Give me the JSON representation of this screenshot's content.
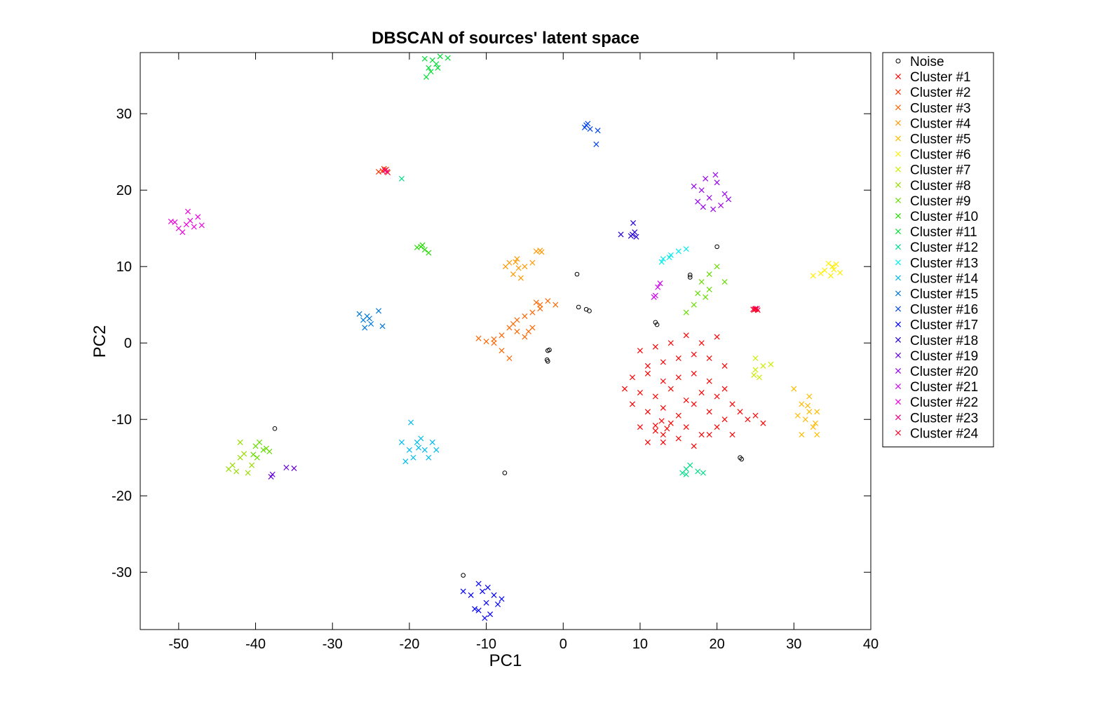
{
  "chart_data": {
    "type": "scatter",
    "title": "DBSCAN of sources' latent space",
    "xlabel": "PC1",
    "ylabel": "PC2",
    "xlim": [
      -55,
      40
    ],
    "ylim": [
      -37.5,
      38
    ],
    "xticks": [
      -50,
      -40,
      -30,
      -20,
      -10,
      0,
      10,
      20,
      30,
      40
    ],
    "yticks": [
      -30,
      -20,
      -10,
      0,
      10,
      20,
      30
    ],
    "xtick_labels": [
      "-50",
      "-40",
      "-30",
      "-20",
      "-10",
      "0",
      "10",
      "20",
      "30",
      "40"
    ],
    "ytick_labels": [
      "-30",
      "-20",
      "-10",
      "0",
      "10",
      "20",
      "30"
    ],
    "grid": false,
    "legend_position": "outside-right-top",
    "series": [
      {
        "name": "Noise",
        "marker": "circle",
        "color": "#000000",
        "points": [
          [
            20,
            12.6
          ],
          [
            16.5,
            8.9
          ],
          [
            16.5,
            8.6
          ],
          [
            1.8,
            9
          ],
          [
            12,
            2.7
          ],
          [
            12.2,
            2.4
          ],
          [
            2,
            4.7
          ],
          [
            3,
            4.4
          ],
          [
            3.4,
            4.2
          ],
          [
            -1.8,
            -0.9
          ],
          [
            -2,
            -1
          ],
          [
            -2.1,
            -2.2
          ],
          [
            -2,
            -2.4
          ],
          [
            23,
            -15
          ],
          [
            23.2,
            -15.2
          ],
          [
            -37.5,
            -11.2
          ],
          [
            -7.6,
            -17
          ],
          [
            -13,
            -30.4
          ]
        ]
      },
      {
        "name": "Cluster #1",
        "marker": "x",
        "color": "#ff0000",
        "points": [
          [
            10,
            -1
          ],
          [
            12,
            -0.5
          ],
          [
            14,
            0
          ],
          [
            16,
            1
          ],
          [
            18,
            0
          ],
          [
            20,
            0.8
          ],
          [
            11,
            -3
          ],
          [
            13,
            -2.5
          ],
          [
            15,
            -2
          ],
          [
            17,
            -1.5
          ],
          [
            19,
            -2
          ],
          [
            21,
            -3
          ],
          [
            9,
            -4.5
          ],
          [
            11,
            -4
          ],
          [
            13,
            -5
          ],
          [
            15,
            -4.5
          ],
          [
            17,
            -4
          ],
          [
            19,
            -5
          ],
          [
            21,
            -6
          ],
          [
            8,
            -6
          ],
          [
            10,
            -6.5
          ],
          [
            12,
            -7
          ],
          [
            14,
            -6
          ],
          [
            16,
            -7.5
          ],
          [
            18,
            -6.5
          ],
          [
            20,
            -7
          ],
          [
            22,
            -8
          ],
          [
            9,
            -8
          ],
          [
            11,
            -9
          ],
          [
            13,
            -8.5
          ],
          [
            15,
            -9.5
          ],
          [
            17,
            -8
          ],
          [
            19,
            -9
          ],
          [
            21,
            -10
          ],
          [
            23,
            -9
          ],
          [
            10,
            -11
          ],
          [
            12,
            -11.5
          ],
          [
            13,
            -12
          ],
          [
            14,
            -10.5
          ],
          [
            16,
            -11
          ],
          [
            18,
            -12
          ],
          [
            20,
            -11
          ],
          [
            22,
            -12
          ],
          [
            11,
            -13
          ],
          [
            13,
            -13
          ],
          [
            15,
            -12.5
          ],
          [
            17,
            -13.5
          ],
          [
            19,
            -12
          ],
          [
            24,
            -10
          ],
          [
            25,
            -9.5
          ],
          [
            26,
            -10.5
          ],
          [
            12,
            -10.8
          ],
          [
            13.5,
            -11.2
          ],
          [
            12.8,
            -10.2
          ]
        ]
      },
      {
        "name": "Cluster #2",
        "marker": "x",
        "color": "#ff3300",
        "points": [
          [
            -23.5,
            22.5
          ],
          [
            -23,
            22.7
          ],
          [
            -24,
            22.4
          ],
          [
            -22.8,
            22.3
          ],
          [
            -23.3,
            22.8
          ],
          [
            25,
            4.4
          ],
          [
            24.8,
            4.3
          ]
        ]
      },
      {
        "name": "Cluster #3",
        "marker": "x",
        "color": "#ff6600",
        "points": [
          [
            -11,
            0.6
          ],
          [
            -10,
            0.2
          ],
          [
            -9,
            0.5
          ],
          [
            -8,
            1
          ],
          [
            -7,
            2
          ],
          [
            -6,
            3
          ],
          [
            -5,
            3.5
          ],
          [
            -4,
            4
          ],
          [
            -3,
            5
          ],
          [
            -2,
            5.5
          ],
          [
            -6,
            1.5
          ],
          [
            -5,
            0.8
          ],
          [
            -4,
            2
          ],
          [
            -8,
            -1
          ],
          [
            -9,
            0
          ],
          [
            -7,
            -2
          ],
          [
            -3,
            4.5
          ],
          [
            -1,
            5
          ],
          [
            -3.5,
            5.3
          ],
          [
            -6.5,
            2.5
          ],
          [
            -4.5,
            1.5
          ]
        ]
      },
      {
        "name": "Cluster #4",
        "marker": "x",
        "color": "#ff9900",
        "points": [
          [
            -7,
            10.5
          ],
          [
            -6,
            11
          ],
          [
            -5,
            10
          ],
          [
            -6.5,
            9
          ],
          [
            -5.5,
            8.5
          ],
          [
            -4,
            10.5
          ],
          [
            -3.5,
            12
          ],
          [
            -3,
            12.1
          ],
          [
            -2.8,
            11.9
          ],
          [
            -7.5,
            10
          ],
          [
            -5.8,
            9.8
          ],
          [
            -6.2,
            10.6
          ]
        ]
      },
      {
        "name": "Cluster #5",
        "marker": "x",
        "color": "#ffbb00",
        "points": [
          [
            31,
            -8
          ],
          [
            32,
            -7
          ],
          [
            33,
            -9
          ],
          [
            31.5,
            -10
          ],
          [
            32.5,
            -11
          ],
          [
            30,
            -6
          ],
          [
            31,
            -12
          ],
          [
            33,
            -12
          ],
          [
            32,
            -9
          ],
          [
            30.5,
            -9.5
          ],
          [
            31.8,
            -8.2
          ],
          [
            32.8,
            -10.5
          ]
        ]
      },
      {
        "name": "Cluster #6",
        "marker": "x",
        "color": "#ffee00",
        "points": [
          [
            34,
            9.5
          ],
          [
            35,
            10
          ],
          [
            36,
            9.2
          ],
          [
            34.8,
            8.8
          ],
          [
            35.5,
            10.3
          ],
          [
            33.5,
            9.1
          ],
          [
            35.2,
            9.6
          ],
          [
            32.5,
            8.8
          ],
          [
            34.5,
            10.4
          ]
        ]
      },
      {
        "name": "Cluster #7",
        "marker": "x",
        "color": "#ccee00",
        "points": [
          [
            25,
            -3.5
          ],
          [
            26,
            -3
          ],
          [
            27,
            -2.8
          ],
          [
            25.5,
            -4.5
          ],
          [
            25,
            -2
          ],
          [
            24.8,
            -4.2
          ]
        ]
      },
      {
        "name": "Cluster #8",
        "marker": "x",
        "color": "#99dd00",
        "points": [
          [
            -43,
            -16
          ],
          [
            -42,
            -15
          ],
          [
            -41,
            -17
          ],
          [
            -42.5,
            -16.8
          ],
          [
            -41.5,
            -14.5
          ],
          [
            -40.5,
            -16
          ],
          [
            -42,
            -13
          ],
          [
            -43.5,
            -16.5
          ]
        ]
      },
      {
        "name": "Cluster #9",
        "marker": "x",
        "color": "#66dd00",
        "points": [
          [
            -40,
            -13.5
          ],
          [
            -39,
            -14
          ],
          [
            -39.5,
            -13
          ],
          [
            -40.3,
            -14.6
          ],
          [
            -38.6,
            -13.8
          ],
          [
            -39.8,
            -15
          ],
          [
            -38.2,
            -14.2
          ],
          [
            18,
            8
          ],
          [
            19,
            9
          ],
          [
            20,
            10
          ],
          [
            18.5,
            6
          ],
          [
            17,
            5
          ],
          [
            16,
            4
          ],
          [
            19,
            7
          ],
          [
            21,
            8
          ],
          [
            17.5,
            6.5
          ]
        ]
      },
      {
        "name": "Cluster #10",
        "marker": "x",
        "color": "#22dd00",
        "points": [
          [
            -18.5,
            12.6
          ],
          [
            -18,
            12.2
          ],
          [
            -17.5,
            11.8
          ],
          [
            -19,
            12.5
          ],
          [
            -18.3,
            12.8
          ]
        ]
      },
      {
        "name": "Cluster #11",
        "marker": "x",
        "color": "#00dd33",
        "points": [
          [
            -17,
            37
          ],
          [
            -16.5,
            36.5
          ],
          [
            -17.5,
            36
          ],
          [
            -16,
            37.5
          ],
          [
            -18,
            37.2
          ],
          [
            -17.2,
            35.5
          ],
          [
            -16.3,
            36
          ],
          [
            -17.8,
            34.8
          ],
          [
            -15,
            37.3
          ]
        ]
      },
      {
        "name": "Cluster #12",
        "marker": "x",
        "color": "#00dd88",
        "points": [
          [
            16,
            -16.5
          ],
          [
            16.5,
            -16
          ],
          [
            15.5,
            -17
          ],
          [
            17.5,
            -16.8
          ],
          [
            18.2,
            -17
          ],
          [
            16,
            -17.2
          ],
          [
            -21,
            21.5
          ]
        ]
      },
      {
        "name": "Cluster #13",
        "marker": "x",
        "color": "#00eeee",
        "points": [
          [
            13,
            11
          ],
          [
            14,
            11.5
          ],
          [
            15,
            12
          ],
          [
            16,
            12.3
          ],
          [
            12.8,
            10.6
          ],
          [
            13.8,
            11.2
          ]
        ]
      },
      {
        "name": "Cluster #14",
        "marker": "x",
        "color": "#00bbee",
        "points": [
          [
            -20,
            -14
          ],
          [
            -19,
            -13
          ],
          [
            -18,
            -14
          ],
          [
            -17,
            -13
          ],
          [
            -21,
            -13
          ],
          [
            -19.5,
            -15
          ],
          [
            -18.5,
            -12.5
          ],
          [
            -17.5,
            -15
          ],
          [
            -20.5,
            -15.5
          ],
          [
            -19.8,
            -10.4
          ],
          [
            -16.5,
            -14
          ],
          [
            -18.8,
            -13.7
          ]
        ]
      },
      {
        "name": "Cluster #15",
        "marker": "x",
        "color": "#0077dd",
        "points": [
          [
            -26,
            3
          ],
          [
            -25.5,
            3.5
          ],
          [
            -25,
            2.5
          ],
          [
            -26.5,
            3.8
          ],
          [
            -25.8,
            2
          ],
          [
            -24,
            4.2
          ],
          [
            -23.5,
            2.2
          ],
          [
            -25.2,
            3.2
          ]
        ]
      },
      {
        "name": "Cluster #16",
        "marker": "x",
        "color": "#0044ee",
        "points": [
          [
            3,
            28.5
          ],
          [
            3.5,
            28
          ],
          [
            2.8,
            28.2
          ],
          [
            3.2,
            28.7
          ],
          [
            4.5,
            27.8
          ],
          [
            4.3,
            26
          ]
        ]
      },
      {
        "name": "Cluster #17",
        "marker": "x",
        "color": "#0000ff",
        "points": [
          [
            -10,
            -34
          ],
          [
            -9,
            -33
          ],
          [
            -11,
            -35
          ],
          [
            -10.5,
            -32.5
          ],
          [
            -9.5,
            -35.5
          ],
          [
            -8.5,
            -34.2
          ],
          [
            -11.5,
            -34.8
          ],
          [
            -10.2,
            -36
          ],
          [
            -8,
            -33.5
          ],
          [
            -12,
            -33
          ],
          [
            -13,
            -32.5
          ],
          [
            -11,
            -31.5
          ],
          [
            -9.8,
            -32
          ]
        ]
      },
      {
        "name": "Cluster #18",
        "marker": "x",
        "color": "#2200dd",
        "points": [
          [
            9,
            14.2
          ],
          [
            9.3,
            14.5
          ],
          [
            8.8,
            14
          ],
          [
            9.1,
            15.7
          ],
          [
            7.5,
            14.2
          ],
          [
            9.5,
            13.9
          ]
        ]
      },
      {
        "name": "Cluster #19",
        "marker": "x",
        "color": "#6600dd",
        "points": [
          [
            -38,
            -17.5
          ],
          [
            -36,
            -16.3
          ],
          [
            -35,
            -16.4
          ],
          [
            -37.8,
            -17.2
          ]
        ]
      },
      {
        "name": "Cluster #20",
        "marker": "x",
        "color": "#9900ee",
        "points": [
          [
            18,
            20
          ],
          [
            19,
            19
          ],
          [
            20,
            21
          ],
          [
            17.5,
            18.5
          ],
          [
            19.5,
            17.5
          ],
          [
            21,
            19.5
          ],
          [
            18.5,
            21.5
          ],
          [
            20.5,
            18
          ],
          [
            17,
            20.5
          ],
          [
            19.8,
            22
          ],
          [
            18.2,
            17.8
          ],
          [
            21.5,
            18.8
          ]
        ]
      },
      {
        "name": "Cluster #21",
        "marker": "x",
        "color": "#cc00ee",
        "points": [
          [
            12,
            6.2
          ],
          [
            12.3,
            7.3
          ],
          [
            12.6,
            7.8
          ],
          [
            11.8,
            6
          ]
        ]
      },
      {
        "name": "Cluster #22",
        "marker": "x",
        "color": "#ee00dd",
        "points": [
          [
            -49,
            15.5
          ],
          [
            -48.5,
            16
          ],
          [
            -50,
            15
          ],
          [
            -48,
            15.2
          ],
          [
            -49.5,
            14.5
          ],
          [
            -47.5,
            16.5
          ],
          [
            -50.5,
            15.8
          ],
          [
            -48.8,
            17.2
          ],
          [
            -47,
            15.4
          ],
          [
            -51,
            15.9
          ]
        ]
      },
      {
        "name": "Cluster #23",
        "marker": "x",
        "color": "#ee0088",
        "points": [
          [
            -23.2,
            22.6
          ],
          [
            -22.9,
            22.4
          ],
          [
            25.2,
            4.5
          ],
          [
            24.9,
            4.4
          ]
        ]
      },
      {
        "name": "Cluster #24",
        "marker": "x",
        "color": "#ff0022",
        "points": [
          [
            25,
            4.5
          ],
          [
            25.3,
            4.3
          ],
          [
            24.7,
            4.4
          ]
        ]
      }
    ]
  }
}
